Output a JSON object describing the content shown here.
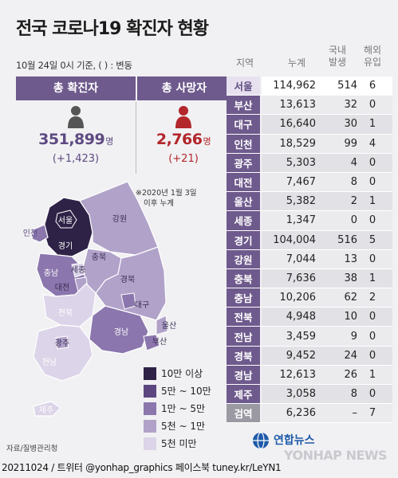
{
  "title": "전국 코로나19 확진자 현황",
  "basis": "10월 24일 0시 기준, ( ) : 변동",
  "summary": {
    "confirmed_label": "총 확진자",
    "confirmed_value": "351,899",
    "confirmed_unit": "명",
    "confirmed_delta": "(+1,423)",
    "deaths_label": "총 사망자",
    "deaths_value": "2,766",
    "deaths_unit": "명",
    "deaths_delta": "(+21)"
  },
  "note_line1": "※2020년 1월 3일",
  "note_line2": "이후 누계",
  "table_headers": {
    "region": "지역",
    "cumulative": "누계",
    "local_1": "국내",
    "local_2": "발생",
    "imported_1": "해외",
    "imported_2": "유입"
  },
  "chart_data": {
    "type": "table",
    "columns": [
      "지역",
      "누계",
      "국내 발생",
      "해외 유입"
    ],
    "rows": [
      {
        "region": "서울",
        "cumulative": "114,962",
        "local": "514",
        "imported": "6"
      },
      {
        "region": "부산",
        "cumulative": "13,613",
        "local": "32",
        "imported": "0"
      },
      {
        "region": "대구",
        "cumulative": "16,640",
        "local": "30",
        "imported": "1"
      },
      {
        "region": "인천",
        "cumulative": "18,529",
        "local": "99",
        "imported": "4"
      },
      {
        "region": "광주",
        "cumulative": "5,303",
        "local": "4",
        "imported": "0"
      },
      {
        "region": "대전",
        "cumulative": "7,467",
        "local": "8",
        "imported": "0"
      },
      {
        "region": "울산",
        "cumulative": "5,382",
        "local": "2",
        "imported": "1"
      },
      {
        "region": "세종",
        "cumulative": "1,347",
        "local": "0",
        "imported": "0"
      },
      {
        "region": "경기",
        "cumulative": "104,004",
        "local": "516",
        "imported": "5"
      },
      {
        "region": "강원",
        "cumulative": "7,044",
        "local": "13",
        "imported": "0"
      },
      {
        "region": "충북",
        "cumulative": "7,636",
        "local": "38",
        "imported": "1"
      },
      {
        "region": "충남",
        "cumulative": "10,206",
        "local": "62",
        "imported": "2"
      },
      {
        "region": "전북",
        "cumulative": "4,948",
        "local": "10",
        "imported": "0"
      },
      {
        "region": "전남",
        "cumulative": "3,459",
        "local": "9",
        "imported": "0"
      },
      {
        "region": "경북",
        "cumulative": "9,452",
        "local": "24",
        "imported": "0"
      },
      {
        "region": "경남",
        "cumulative": "12,613",
        "local": "26",
        "imported": "1"
      },
      {
        "region": "제주",
        "cumulative": "3,058",
        "local": "8",
        "imported": "0"
      },
      {
        "region": "검역",
        "cumulative": "6,236",
        "local": "–",
        "imported": "7"
      }
    ]
  },
  "map": {
    "labels": [
      "서울",
      "인천",
      "경기",
      "강원",
      "충북",
      "세종",
      "충남",
      "대전",
      "경북",
      "대구",
      "전북",
      "울산",
      "경남",
      "부산",
      "광주",
      "전남",
      "제주"
    ],
    "legend": [
      {
        "label": "10만 이상",
        "color": "#2e2247"
      },
      {
        "label": "5만 ~ 10만",
        "color": "#5b4680"
      },
      {
        "label": "1만 ~ 5만",
        "color": "#8b76ad"
      },
      {
        "label": "5천 ~ 1만",
        "color": "#b1a2c9"
      },
      {
        "label": "5천 미만",
        "color": "#dcd4e8"
      }
    ],
    "region_colors": {
      "seoul": "#2e2247",
      "gyeonggi": "#2e2247",
      "incheon": "#8b76ad",
      "gangwon": "#b1a2c9",
      "chungbuk": "#b1a2c9",
      "sejong": "#dcd4e8",
      "chungnam": "#8b76ad",
      "daejeon": "#b1a2c9",
      "gyeongbuk": "#b1a2c9",
      "daegu": "#8b76ad",
      "jeonbuk": "#dcd4e8",
      "ulsan": "#b1a2c9",
      "gyeongnam": "#8b76ad",
      "busan": "#8b76ad",
      "gwangju": "#b1a2c9",
      "jeonnam": "#dcd4e8",
      "jeju": "#dcd4e8"
    }
  },
  "source": "자료/질병관리청",
  "footer": "20211024 / 트위터 @yonhap_graphics  페이스북 tuney.kr/LeYN1",
  "brand_kr": "연합뉴스",
  "brand_en": "YONHAP NEWS"
}
